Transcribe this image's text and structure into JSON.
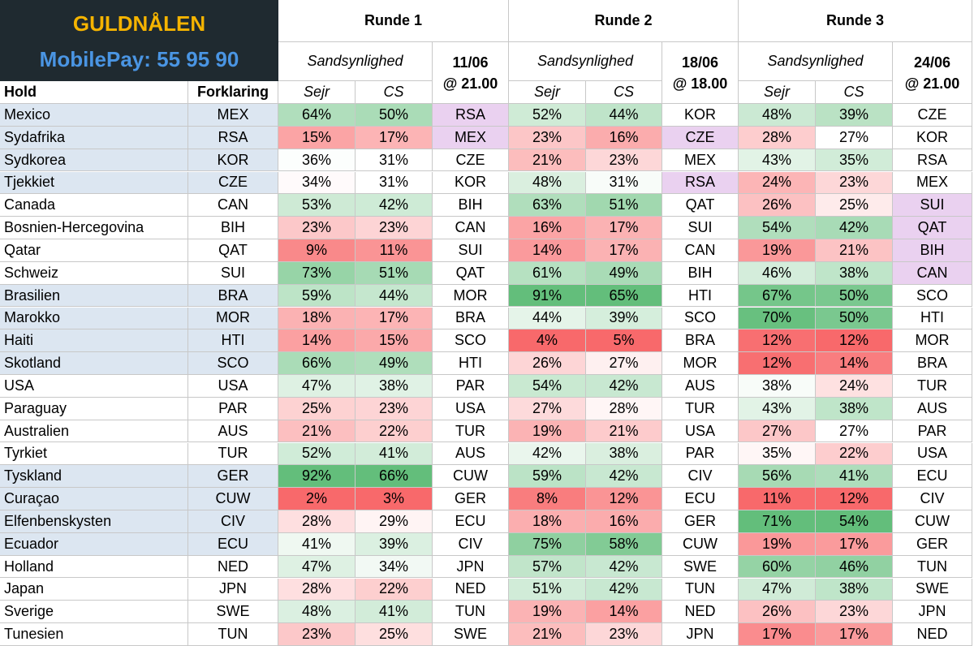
{
  "header": {
    "title": "GULDNÅLEN",
    "subtitle": "MobilePay: 55 95 90"
  },
  "columns": {
    "team": "Hold",
    "code": "Forklaring"
  },
  "rounds": [
    {
      "title": "Runde 1",
      "probability": "Sandsynlighed",
      "win": "Sejr",
      "cs": "CS",
      "date": "11/06",
      "time": "@ 21.00"
    },
    {
      "title": "Runde 2",
      "probability": "Sandsynlighed",
      "win": "Sejr",
      "cs": "CS",
      "date": "18/06",
      "time": "@ 18.00"
    },
    {
      "title": "Runde 3",
      "probability": "Sandsynlighed",
      "win": "Sejr",
      "cs": "CS",
      "date": "24/06",
      "time": "@ 21.00"
    }
  ],
  "groups": [
    {
      "shaded": true,
      "rows": [
        {
          "team": "Mexico",
          "code": "MEX",
          "rounds": [
            {
              "win": "64%",
              "cs": "50%",
              "opponent": "RSA",
              "highlight": true
            },
            {
              "win": "52%",
              "cs": "44%",
              "opponent": "KOR"
            },
            {
              "win": "48%",
              "cs": "39%",
              "opponent": "CZE"
            }
          ]
        },
        {
          "team": "Sydafrika",
          "code": "RSA",
          "rounds": [
            {
              "win": "15%",
              "cs": "17%",
              "opponent": "MEX",
              "highlight": true
            },
            {
              "win": "23%",
              "cs": "16%",
              "opponent": "CZE",
              "highlight": true
            },
            {
              "win": "28%",
              "cs": "27%",
              "opponent": "KOR"
            }
          ]
        },
        {
          "team": "Sydkorea",
          "code": "KOR",
          "rounds": [
            {
              "win": "36%",
              "cs": "31%",
              "opponent": "CZE"
            },
            {
              "win": "21%",
              "cs": "23%",
              "opponent": "MEX"
            },
            {
              "win": "43%",
              "cs": "35%",
              "opponent": "RSA"
            }
          ]
        },
        {
          "team": "Tjekkiet",
          "code": "CZE",
          "rounds": [
            {
              "win": "34%",
              "cs": "31%",
              "opponent": "KOR"
            },
            {
              "win": "48%",
              "cs": "31%",
              "opponent": "RSA",
              "highlight": true
            },
            {
              "win": "24%",
              "cs": "23%",
              "opponent": "MEX"
            }
          ]
        }
      ]
    },
    {
      "shaded": false,
      "rows": [
        {
          "team": "Canada",
          "code": "CAN",
          "rounds": [
            {
              "win": "53%",
              "cs": "42%",
              "opponent": "BIH"
            },
            {
              "win": "63%",
              "cs": "51%",
              "opponent": "QAT"
            },
            {
              "win": "26%",
              "cs": "25%",
              "opponent": "SUI",
              "highlight": true
            }
          ]
        },
        {
          "team": "Bosnien-Hercegovina",
          "code": "BIH",
          "rounds": [
            {
              "win": "23%",
              "cs": "23%",
              "opponent": "CAN"
            },
            {
              "win": "16%",
              "cs": "17%",
              "opponent": "SUI"
            },
            {
              "win": "54%",
              "cs": "42%",
              "opponent": "QAT",
              "highlight": true
            }
          ]
        },
        {
          "team": "Qatar",
          "code": "QAT",
          "rounds": [
            {
              "win": "9%",
              "cs": "11%",
              "opponent": "SUI"
            },
            {
              "win": "14%",
              "cs": "17%",
              "opponent": "CAN"
            },
            {
              "win": "19%",
              "cs": "21%",
              "opponent": "BIH",
              "highlight": true
            }
          ]
        },
        {
          "team": "Schweiz",
          "code": "SUI",
          "rounds": [
            {
              "win": "73%",
              "cs": "51%",
              "opponent": "QAT"
            },
            {
              "win": "61%",
              "cs": "49%",
              "opponent": "BIH"
            },
            {
              "win": "46%",
              "cs": "38%",
              "opponent": "CAN",
              "highlight": true
            }
          ]
        }
      ]
    },
    {
      "shaded": true,
      "rows": [
        {
          "team": "Brasilien",
          "code": "BRA",
          "rounds": [
            {
              "win": "59%",
              "cs": "44%",
              "opponent": "MOR"
            },
            {
              "win": "91%",
              "cs": "65%",
              "opponent": "HTI"
            },
            {
              "win": "67%",
              "cs": "50%",
              "opponent": "SCO"
            }
          ]
        },
        {
          "team": "Marokko",
          "code": "MOR",
          "rounds": [
            {
              "win": "18%",
              "cs": "17%",
              "opponent": "BRA"
            },
            {
              "win": "44%",
              "cs": "39%",
              "opponent": "SCO"
            },
            {
              "win": "70%",
              "cs": "50%",
              "opponent": "HTI"
            }
          ]
        },
        {
          "team": "Haiti",
          "code": "HTI",
          "rounds": [
            {
              "win": "14%",
              "cs": "15%",
              "opponent": "SCO"
            },
            {
              "win": "4%",
              "cs": "5%",
              "opponent": "BRA"
            },
            {
              "win": "12%",
              "cs": "12%",
              "opponent": "MOR"
            }
          ]
        },
        {
          "team": "Skotland",
          "code": "SCO",
          "rounds": [
            {
              "win": "66%",
              "cs": "49%",
              "opponent": "HTI"
            },
            {
              "win": "26%",
              "cs": "27%",
              "opponent": "MOR"
            },
            {
              "win": "12%",
              "cs": "14%",
              "opponent": "BRA"
            }
          ]
        }
      ]
    },
    {
      "shaded": false,
      "rows": [
        {
          "team": "USA",
          "code": "USA",
          "rounds": [
            {
              "win": "47%",
              "cs": "38%",
              "opponent": "PAR"
            },
            {
              "win": "54%",
              "cs": "42%",
              "opponent": "AUS"
            },
            {
              "win": "38%",
              "cs": "24%",
              "opponent": "TUR"
            }
          ]
        },
        {
          "team": "Paraguay",
          "code": "PAR",
          "rounds": [
            {
              "win": "25%",
              "cs": "23%",
              "opponent": "USA"
            },
            {
              "win": "27%",
              "cs": "28%",
              "opponent": "TUR"
            },
            {
              "win": "43%",
              "cs": "38%",
              "opponent": "AUS"
            }
          ]
        },
        {
          "team": "Australien",
          "code": "AUS",
          "rounds": [
            {
              "win": "21%",
              "cs": "22%",
              "opponent": "TUR"
            },
            {
              "win": "19%",
              "cs": "21%",
              "opponent": "USA"
            },
            {
              "win": "27%",
              "cs": "27%",
              "opponent": "PAR"
            }
          ]
        },
        {
          "team": "Tyrkiet",
          "code": "TUR",
          "rounds": [
            {
              "win": "52%",
              "cs": "41%",
              "opponent": "AUS"
            },
            {
              "win": "42%",
              "cs": "38%",
              "opponent": "PAR"
            },
            {
              "win": "35%",
              "cs": "22%",
              "opponent": "USA"
            }
          ]
        }
      ]
    },
    {
      "shaded": true,
      "rows": [
        {
          "team": "Tyskland",
          "code": "GER",
          "rounds": [
            {
              "win": "92%",
              "cs": "66%",
              "opponent": "CUW"
            },
            {
              "win": "59%",
              "cs": "42%",
              "opponent": "CIV"
            },
            {
              "win": "56%",
              "cs": "41%",
              "opponent": "ECU"
            }
          ]
        },
        {
          "team": "Curaçao",
          "code": "CUW",
          "rounds": [
            {
              "win": "2%",
              "cs": "3%",
              "opponent": "GER"
            },
            {
              "win": "8%",
              "cs": "12%",
              "opponent": "ECU"
            },
            {
              "win": "11%",
              "cs": "12%",
              "opponent": "CIV"
            }
          ]
        },
        {
          "team": "Elfenbenskysten",
          "code": "CIV",
          "rounds": [
            {
              "win": "28%",
              "cs": "29%",
              "opponent": "ECU"
            },
            {
              "win": "18%",
              "cs": "16%",
              "opponent": "GER"
            },
            {
              "win": "71%",
              "cs": "54%",
              "opponent": "CUW"
            }
          ]
        },
        {
          "team": "Ecuador",
          "code": "ECU",
          "rounds": [
            {
              "win": "41%",
              "cs": "39%",
              "opponent": "CIV"
            },
            {
              "win": "75%",
              "cs": "58%",
              "opponent": "CUW"
            },
            {
              "win": "19%",
              "cs": "17%",
              "opponent": "GER"
            }
          ]
        }
      ]
    },
    {
      "shaded": false,
      "rows": [
        {
          "team": "Holland",
          "code": "NED",
          "rounds": [
            {
              "win": "47%",
              "cs": "34%",
              "opponent": "JPN"
            },
            {
              "win": "57%",
              "cs": "42%",
              "opponent": "SWE"
            },
            {
              "win": "60%",
              "cs": "46%",
              "opponent": "TUN"
            }
          ]
        },
        {
          "team": "Japan",
          "code": "JPN",
          "rounds": [
            {
              "win": "28%",
              "cs": "22%",
              "opponent": "NED"
            },
            {
              "win": "51%",
              "cs": "42%",
              "opponent": "TUN"
            },
            {
              "win": "47%",
              "cs": "38%",
              "opponent": "SWE"
            }
          ]
        },
        {
          "team": "Sverige",
          "code": "SWE",
          "rounds": [
            {
              "win": "48%",
              "cs": "41%",
              "opponent": "TUN"
            },
            {
              "win": "19%",
              "cs": "14%",
              "opponent": "NED"
            },
            {
              "win": "26%",
              "cs": "23%",
              "opponent": "JPN"
            }
          ]
        },
        {
          "team": "Tunesien",
          "code": "TUN",
          "rounds": [
            {
              "win": "23%",
              "cs": "25%",
              "opponent": "SWE"
            },
            {
              "win": "21%",
              "cs": "23%",
              "opponent": "JPN"
            },
            {
              "win": "17%",
              "cs": "17%",
              "opponent": "NED"
            }
          ]
        }
      ]
    }
  ]
}
